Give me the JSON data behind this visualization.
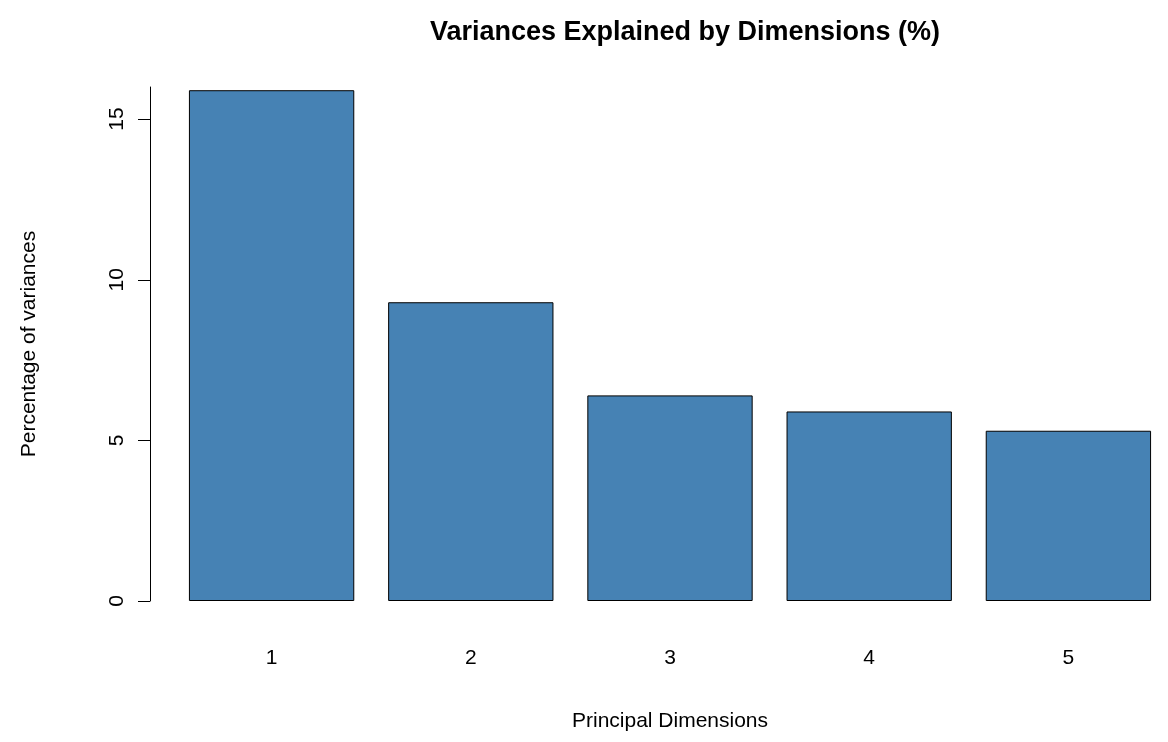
{
  "chart_data": {
    "type": "bar",
    "title": "Variances Explained by Dimensions (%)",
    "xlabel": "Principal Dimensions",
    "ylabel": "Percentage of variances",
    "categories": [
      "1",
      "2",
      "3",
      "4",
      "5"
    ],
    "values": [
      15.9,
      9.3,
      6.4,
      5.9,
      5.3
    ],
    "color": "#4682b4",
    "ylim": [
      0,
      16
    ],
    "yticks": [
      0,
      5,
      10,
      15
    ],
    "grid": false
  }
}
